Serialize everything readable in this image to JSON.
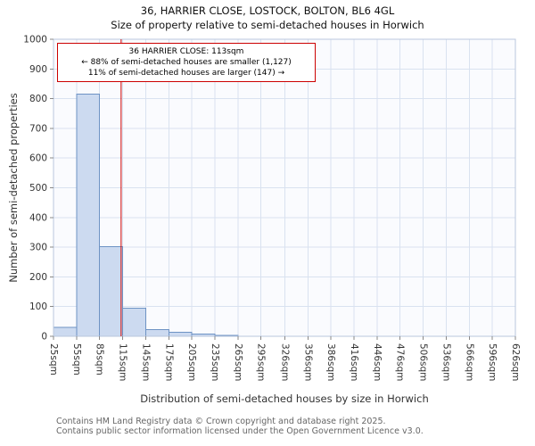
{
  "footer": {
    "line1": "Contains HM Land Registry data © Crown copyright and database right 2025.",
    "line2": "Contains public sector information licensed under the Open Government Licence v3.0."
  },
  "chart_data": {
    "type": "bar",
    "title": "36, HARRIER CLOSE, LOSTOCK, BOLTON, BL6 4GL",
    "subtitle": "Size of property relative to semi-detached houses in Horwich",
    "xlabel": "Distribution of semi-detached houses by size in Horwich",
    "ylabel": "Number of semi-detached properties",
    "bin_edges": [
      25,
      55,
      85,
      115,
      145,
      175,
      205,
      235,
      265,
      295,
      326,
      356,
      386,
      416,
      446,
      476,
      506,
      536,
      566,
      596,
      626
    ],
    "categories": [
      "25sqm",
      "55sqm",
      "85sqm",
      "115sqm",
      "145sqm",
      "175sqm",
      "205sqm",
      "235sqm",
      "265sqm",
      "295sqm",
      "326sqm",
      "356sqm",
      "386sqm",
      "416sqm",
      "446sqm",
      "476sqm",
      "506sqm",
      "536sqm",
      "566sqm",
      "596sqm",
      "626sqm"
    ],
    "values": [
      30,
      815,
      302,
      95,
      22,
      13,
      7,
      3,
      0,
      0,
      0,
      0,
      0,
      0,
      0,
      0,
      0,
      0,
      0,
      0
    ],
    "ylim": [
      0,
      1000
    ],
    "ytick_step": 100,
    "grid": true,
    "legend": false,
    "marker": {
      "sqm": 113
    },
    "annotation": {
      "line1": "36 HARRIER CLOSE: 113sqm",
      "line2": "← 88% of semi-detached houses are smaller (1,127)",
      "line3": "11% of semi-detached houses are larger (147) →"
    },
    "colors": {
      "bar_fill": "#ccdaf0",
      "bar_stroke": "#6e93c4",
      "grid": "#d9e2f0",
      "plot_bg": "#fafbfe",
      "plot_border": "#bac7dd",
      "marker": "#cc0000",
      "tick": "#888888",
      "tick_label": "#333333"
    }
  }
}
